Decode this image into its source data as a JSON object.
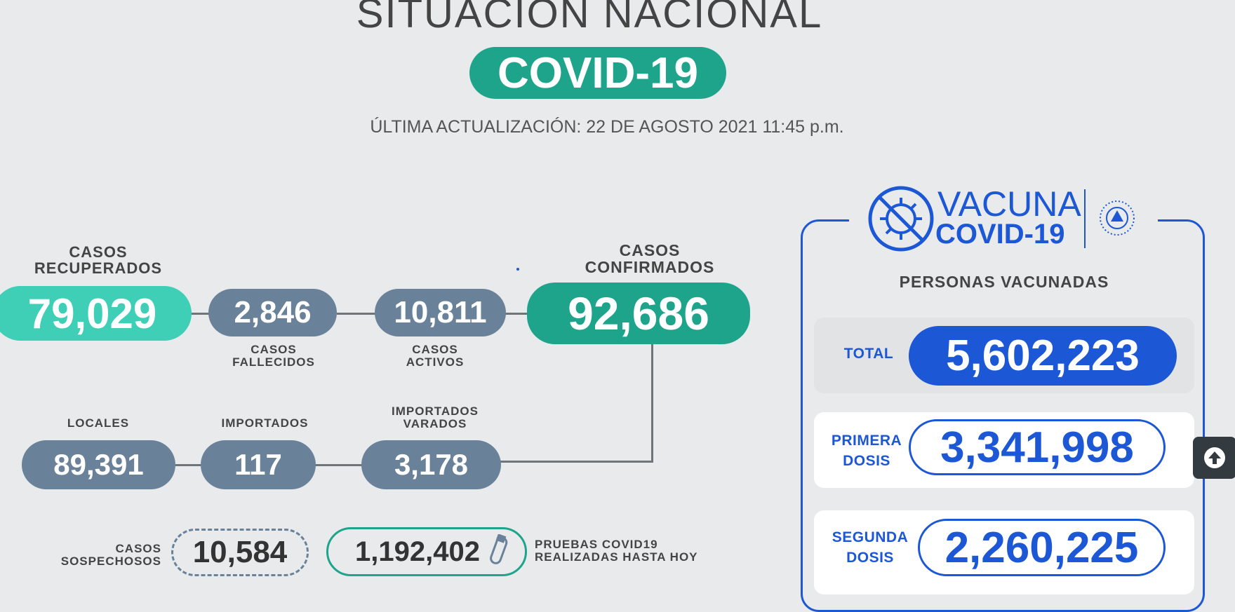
{
  "header": {
    "title": "SITUACIÓN NACIONAL",
    "badge": "COVID-19",
    "updated": "ÚLTIMA ACTUALIZACIÓN: 22 DE AGOSTO 2021 11:45 p.m."
  },
  "stats": {
    "recuperados": {
      "label": "CASOS RECUPERADOS",
      "value": "79,029"
    },
    "fallecidos": {
      "label": "CASOS FALLECIDOS",
      "value": "2,846"
    },
    "activos": {
      "label": "CASOS ACTIVOS",
      "value": "10,811"
    },
    "confirmados": {
      "label": "CASOS CONFIRMADOS",
      "value": "92,686"
    },
    "locales": {
      "label": "LOCALES",
      "value": "89,391"
    },
    "importados": {
      "label": "IMPORTADOS",
      "value": "117"
    },
    "varados": {
      "label": "IMPORTADOS VARADOS",
      "value": "3,178"
    },
    "sospechosos": {
      "label": "CASOS SOSPECHOSOS",
      "value": "10,584"
    },
    "pruebas": {
      "label": "PRUEBAS COVID19 REALIZADAS HASTA HOY",
      "value": "1,192,402"
    }
  },
  "vacuna": {
    "logo_top": "VACUNA",
    "logo_bottom": "COVID-19",
    "heading": "PERSONAS VACUNADAS",
    "total": {
      "label": "TOTAL",
      "value": "5,602,223"
    },
    "primera": {
      "label_1": "PRIMERA",
      "label_2": "DOSIS",
      "value": "3,341,998"
    },
    "segunda": {
      "label_1": "SEGUNDA",
      "label_2": "DOSIS",
      "value": "2,260,225"
    }
  },
  "colors": {
    "background": "#e9eaec",
    "teal": "#1fa48c",
    "mint": "#3ecfb6",
    "slate": "#6a8299",
    "vaccine_blue": "#1c57d6"
  },
  "icons": {
    "test_tube": "test-tube-icon",
    "virus": "virus-crossed-icon",
    "seal": "el-salvador-seal-icon",
    "scroll_top": "arrow-up-circle-icon"
  }
}
